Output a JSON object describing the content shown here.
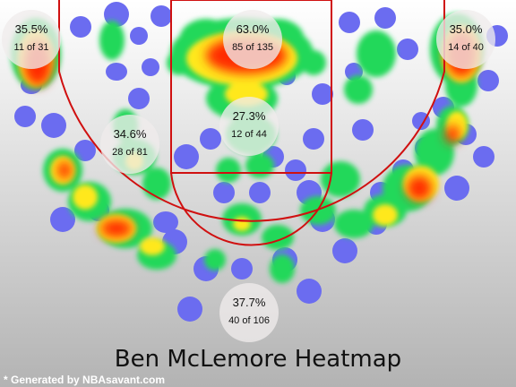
{
  "chart_data": {
    "type": "heatmap",
    "title": "Ben McLemore Heatmap",
    "credit": "* Generated by NBAsavant.com",
    "zones": [
      {
        "zone": "left-corner-three",
        "pct": "35.5%",
        "made_of_attempts": "11 of 31"
      },
      {
        "zone": "restricted-area",
        "pct": "63.0%",
        "made_of_attempts": "85 of 135"
      },
      {
        "zone": "right-corner-three",
        "pct": "35.0%",
        "made_of_attempts": "14 of 40"
      },
      {
        "zone": "paint-non-ra",
        "pct": "27.3%",
        "made_of_attempts": "12 of 44"
      },
      {
        "zone": "mid-range",
        "pct": "34.6%",
        "made_of_attempts": "28 of 81"
      },
      {
        "zone": "above-break-three",
        "pct": "37.7%",
        "made_of_attempts": "40 of 106"
      }
    ],
    "colors": {
      "court_line": "#d01010",
      "background_top": "#ffffff",
      "background_bottom": "#b3b3b3",
      "low_density": "#6b6cf0",
      "mid_density": "#22d85a",
      "high_density": "#ffe81a",
      "hot": "#ff2a00"
    }
  }
}
